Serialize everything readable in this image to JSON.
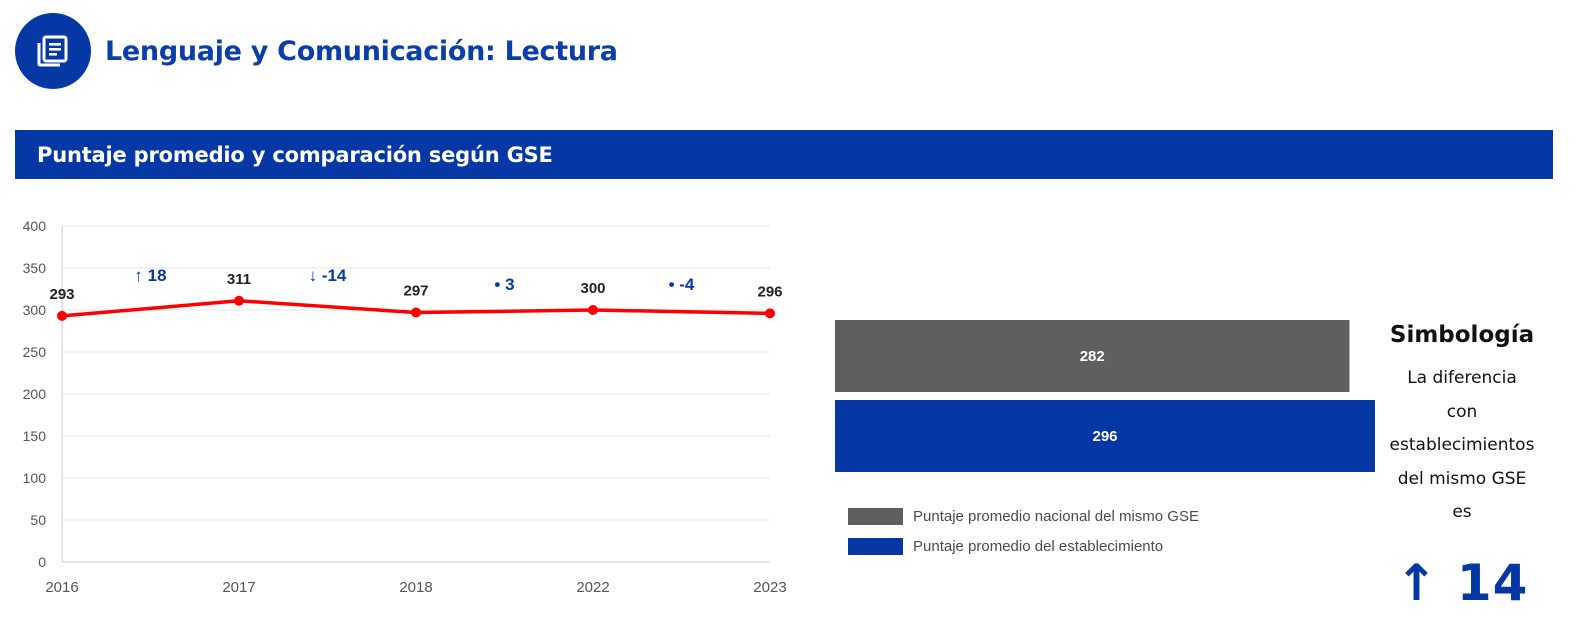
{
  "header": {
    "title": "Lenguaje y Comunicación: Lectura",
    "icon": "article-icon"
  },
  "banner": {
    "title": "Puntaje promedio y comparación según GSE"
  },
  "colors": {
    "brand_blue": "#0538a5",
    "line_red": "#ff0000",
    "gray_bar": "#5f5f5f"
  },
  "chart_data": [
    {
      "type": "line",
      "categories": [
        "2016",
        "2017",
        "2018",
        "2022",
        "2023"
      ],
      "values": [
        293,
        311,
        297,
        300,
        296
      ],
      "ylim": [
        0,
        400
      ],
      "yticks": [
        "0",
        "50",
        "100",
        "150",
        "200",
        "250",
        "300",
        "350",
        "400"
      ],
      "grid": true,
      "changes": [
        {
          "symbol": "↑",
          "text": "18"
        },
        {
          "symbol": "↓",
          "text": "-14"
        },
        {
          "symbol": "•",
          "text": "3"
        },
        {
          "symbol": "•",
          "text": "-4"
        }
      ]
    },
    {
      "type": "bar",
      "orientation": "horizontal",
      "series": [
        {
          "name": "Puntaje promedio nacional del mismo GSE",
          "value": 282,
          "color": "#5f5f5f"
        },
        {
          "name": "Puntaje promedio del establecimiento",
          "value": 296,
          "color": "#0538a5"
        }
      ]
    }
  ],
  "symbology": {
    "title": "Simbología",
    "lines": [
      "La diferencia",
      "con",
      "establecimientos",
      "del mismo GSE",
      "es"
    ],
    "arrow": "↑",
    "value": "14"
  }
}
